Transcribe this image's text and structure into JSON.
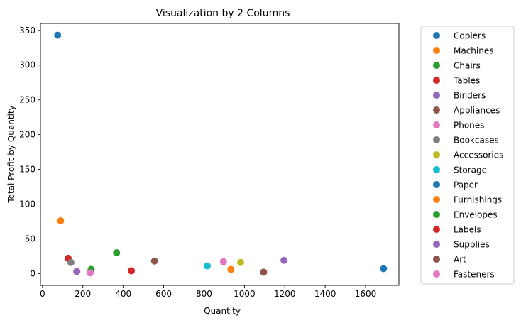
{
  "chart_data": {
    "type": "scatter",
    "title": "Visualization by 2 Columns",
    "xlabel": "Quantity",
    "ylabel": "Total Profit by Quantity",
    "xlim": [
      -10,
      1765
    ],
    "ylim": [
      -17,
      360
    ],
    "xticks": [
      0,
      200,
      400,
      600,
      800,
      1000,
      1200,
      1400,
      1600
    ],
    "yticks": [
      0,
      50,
      100,
      150,
      200,
      250,
      300,
      350
    ],
    "grid": false,
    "legend_position": "outside-right",
    "series": [
      {
        "name": "Copiers",
        "color": "#1f77b4",
        "x": 75,
        "y": 343
      },
      {
        "name": "Machines",
        "color": "#ff7f0e",
        "x": 90,
        "y": 76
      },
      {
        "name": "Chairs",
        "color": "#2ca02c",
        "x": 367,
        "y": 30
      },
      {
        "name": "Tables",
        "color": "#d62728",
        "x": 127,
        "y": 22
      },
      {
        "name": "Binders",
        "color": "#9467bd",
        "x": 1196,
        "y": 19
      },
      {
        "name": "Appliances",
        "color": "#8c564b",
        "x": 555,
        "y": 18
      },
      {
        "name": "Phones",
        "color": "#e377c2",
        "x": 896,
        "y": 17
      },
      {
        "name": "Bookcases",
        "color": "#7f7f7f",
        "x": 141,
        "y": 16
      },
      {
        "name": "Accessories",
        "color": "#bcbd22",
        "x": 981,
        "y": 16
      },
      {
        "name": "Storage",
        "color": "#17becf",
        "x": 816,
        "y": 11
      },
      {
        "name": "Paper",
        "color": "#1f77b4",
        "x": 1689,
        "y": 7
      },
      {
        "name": "Furnishings",
        "color": "#ff7f0e",
        "x": 933,
        "y": 6
      },
      {
        "name": "Envelopes",
        "color": "#2ca02c",
        "x": 241,
        "y": 6
      },
      {
        "name": "Labels",
        "color": "#d62728",
        "x": 440,
        "y": 4
      },
      {
        "name": "Supplies",
        "color": "#9467bd",
        "x": 170,
        "y": 3
      },
      {
        "name": "Art",
        "color": "#8c564b",
        "x": 1095,
        "y": 2
      },
      {
        "name": "Fasteners",
        "color": "#e377c2",
        "x": 236,
        "y": 1
      }
    ]
  }
}
